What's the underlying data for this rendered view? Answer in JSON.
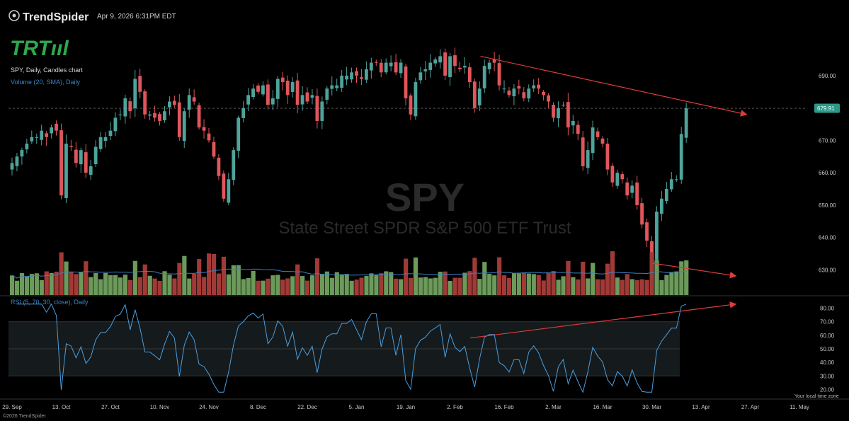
{
  "header": {
    "brand": "TrendSpider",
    "timestamp": "Apr 9, 2026 6:31PM EDT",
    "logo": "TRTııl",
    "chart_title": "SPY, Daily, Candles chart",
    "volume_label": "Volume (20, SMA), Daily",
    "rsi_label": "RSI (5, 70, 30, close), Daily",
    "watermark_symbol": "SPY",
    "watermark_name": "State Street SPDR S&P 500 ETF Trust",
    "timezone_note": "Your local time zone",
    "copyright": "©2026 TrendSpider"
  },
  "colors": {
    "up": "#4ea39a",
    "down": "#e0565b",
    "vol_up": "#6b9a5a",
    "vol_down": "#a13a36",
    "sma": "#3b82c4",
    "rsi": "#4a9fe0",
    "trendline": "#e03b3b",
    "brand_green": "#2ea84f",
    "price_tag": "#2b9a8a"
  },
  "chart_data": {
    "type": "candlestick",
    "symbol": "SPY",
    "price_axis": {
      "ticks": [
        "690.00",
        "680.00",
        "670.00",
        "660.00",
        "650.00",
        "640.00",
        "630.00"
      ],
      "values": [
        690,
        680,
        670,
        660,
        650,
        640,
        630
      ],
      "range": [
        622,
        702
      ]
    },
    "last_price": 679.91,
    "last_price_label": "679.91",
    "x_axis_ticks": [
      "29. Sep",
      "13. Oct",
      "27. Oct",
      "10. Nov",
      "24. Nov",
      "8. Dec",
      "22. Dec",
      "5. Jan",
      "19. Jan",
      "2. Feb",
      "16. Feb",
      "2. Mar",
      "16. Mar",
      "30. Mar",
      "13. Apr",
      "27. Apr",
      "11. May"
    ],
    "closes": [
      663,
      665,
      667,
      669,
      671,
      671,
      673,
      671,
      674,
      673,
      653,
      669,
      668,
      663,
      667,
      660,
      662,
      668,
      671,
      671,
      673,
      677,
      678,
      683,
      679,
      689,
      685,
      678,
      678,
      677,
      676,
      679,
      682,
      681,
      671,
      679,
      684,
      682,
      674,
      673,
      670,
      665,
      659,
      652,
      658,
      667,
      677,
      680,
      684,
      686,
      685,
      687,
      681,
      683,
      689,
      688,
      684,
      688,
      681,
      684,
      682,
      684,
      676,
      682,
      686,
      687,
      687,
      690,
      690,
      691,
      690,
      689,
      692,
      694,
      694,
      691,
      694,
      694,
      691,
      694,
      683,
      678,
      688,
      691,
      692,
      694,
      695,
      696,
      690,
      696,
      693,
      692,
      693,
      688,
      680,
      686,
      693,
      694,
      694,
      687,
      686,
      684,
      686,
      686,
      683,
      686,
      687,
      686,
      684,
      682,
      677,
      680,
      681,
      674,
      676,
      672,
      662,
      667,
      674,
      671,
      669,
      661,
      657,
      660,
      658,
      653,
      656,
      650,
      644,
      639,
      634,
      648,
      652,
      655,
      658,
      658,
      672,
      679.91
    ],
    "volume_ticks": [],
    "rsi_axis": {
      "ticks": [
        "80.00",
        "70.00",
        "60.00",
        "50.00",
        "40.00",
        "30.00",
        "20.00"
      ],
      "values": [
        80,
        70,
        60,
        50,
        40,
        30,
        20
      ],
      "range": [
        15,
        85
      ],
      "overbought": 70,
      "oversold": 30
    },
    "annotations": [
      {
        "type": "trendline",
        "panel": "price",
        "from": [
          95.2,
          696
        ],
        "to": [
          143.5,
          678
        ],
        "arrow": true
      },
      {
        "type": "trendline",
        "panel": "volume",
        "from": [
          130.2,
          "high"
        ],
        "to": [
          140.6,
          "mid"
        ],
        "arrow": true
      },
      {
        "type": "trendline",
        "panel": "rsi",
        "from": [
          93.1,
          58
        ],
        "to": [
          140.6,
          83
        ],
        "arrow": true
      }
    ]
  }
}
